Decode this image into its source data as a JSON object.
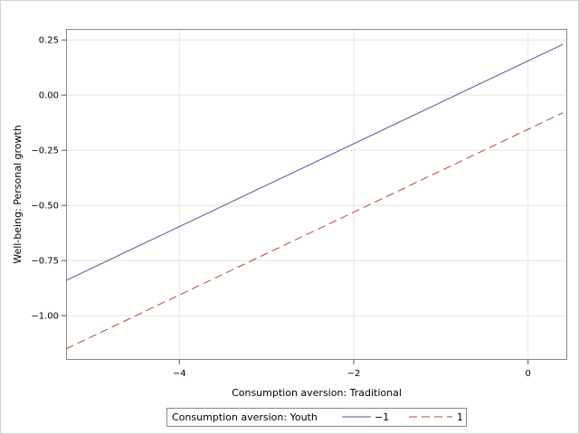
{
  "chart_data": {
    "type": "line",
    "title": "",
    "xlabel": "Consumption aversion: Traditional",
    "ylabel": "Well-being: Personal growth",
    "xlim": [
      -5.3,
      0.45
    ],
    "ylim": [
      -1.2,
      0.3
    ],
    "xticks": [
      -4,
      -2,
      0
    ],
    "xtick_labels": [
      "−4",
      "−2",
      "0"
    ],
    "yticks": [
      0.25,
      0.0,
      -0.25,
      -0.5,
      -0.75,
      -1.0
    ],
    "ytick_labels": [
      "0.25",
      "0.00",
      "−0.25",
      "−0.50",
      "−0.75",
      "−1.00"
    ],
    "grid": true,
    "legend": {
      "title": "Consumption aversion: Youth",
      "placement": "bottom-center"
    },
    "series": [
      {
        "name": "−1",
        "x": [
          -5.3,
          0.4
        ],
        "y": [
          -0.84,
          0.23
        ],
        "color": "#4a5a9a",
        "dash": "solid"
      },
      {
        "name": "1",
        "x": [
          -5.3,
          0.4
        ],
        "y": [
          -1.15,
          -0.08
        ],
        "color": "#b04a30",
        "dash": "dashed"
      }
    ]
  }
}
